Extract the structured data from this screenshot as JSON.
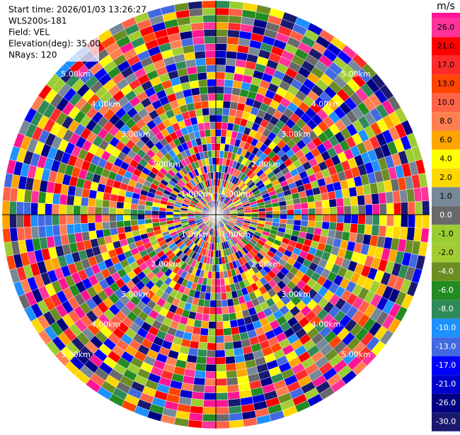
{
  "chart_data": {
    "type": "ppi",
    "header": [
      "Start time: 2026/01/03 13:26:27",
      "WLS200s-181",
      "Field: VEL",
      "Elevation(deg): 35.00",
      "NRays: 120"
    ],
    "range_rings": [
      {
        "value": 1,
        "label": "1.00km"
      },
      {
        "value": 2,
        "label": "2.00km"
      },
      {
        "value": 3,
        "label": "3.00km"
      },
      {
        "value": 4,
        "label": "4.00km"
      },
      {
        "value": 5,
        "label": "5.00km"
      }
    ],
    "colorbar": {
      "unit": "m/s",
      "top_color": "#ff1493",
      "ticks": [
        {
          "value": 26,
          "label": "26.0",
          "color": "#ff3399"
        },
        {
          "value": 21,
          "label": "21.0",
          "color": "#ff0000"
        },
        {
          "value": 17,
          "label": "17.0",
          "color": "#ff2a2a"
        },
        {
          "value": 13,
          "label": "13.0",
          "color": "#ff4500"
        },
        {
          "value": 10,
          "label": "10.0",
          "color": "#ff6347"
        },
        {
          "value": 8,
          "label": "8.0",
          "color": "#ff7f50"
        },
        {
          "value": 6,
          "label": "6.0",
          "color": "#ffa500"
        },
        {
          "value": 4,
          "label": "4.0",
          "color": "#ffff00"
        },
        {
          "value": 2,
          "label": "2.0",
          "color": "#ffd700"
        },
        {
          "value": 1,
          "label": "1.0",
          "color": "#778899"
        },
        {
          "value": 0,
          "label": "0.0",
          "color": "#696969"
        },
        {
          "value": -1,
          "label": "-1.0",
          "color": "#9acd32"
        },
        {
          "value": -2,
          "label": "-2.0",
          "color": "#a2cd32"
        },
        {
          "value": -4,
          "label": "-4.0",
          "color": "#6b8e23"
        },
        {
          "value": -6,
          "label": "-6.0",
          "color": "#228b22"
        },
        {
          "value": -8,
          "label": "-8.0",
          "color": "#2e8b57"
        },
        {
          "value": -10,
          "label": "-10.0",
          "color": "#1e90ff"
        },
        {
          "value": -13,
          "label": "-13.0",
          "color": "#4169e1"
        },
        {
          "value": -17,
          "label": "-17.0",
          "color": "#0000ff"
        },
        {
          "value": -21,
          "label": "-21.0",
          "color": "#0000cd"
        },
        {
          "value": -26,
          "label": "-26.0",
          "color": "#000080"
        },
        {
          "value": -30,
          "label": "-30.0",
          "color": "#191970"
        }
      ]
    }
  }
}
